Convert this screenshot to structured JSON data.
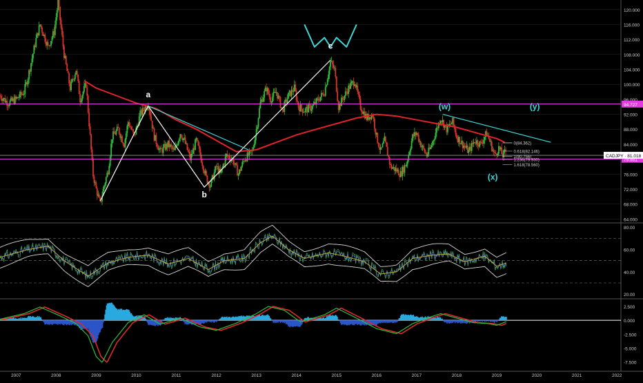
{
  "chart_data": {
    "type": "line",
    "symbol": "CADJPY",
    "colors": {
      "background": "#000000",
      "up": "#2fbf3a",
      "down": "#d9342b",
      "ma": "#e0242a",
      "wave": "#ffffff",
      "trendline": "#3fd8d8",
      "level": "#e23ce0",
      "grid": "#2a2a2a",
      "axis_text": "#cfcfcf"
    },
    "x_axis": {
      "labels": [
        "2007",
        "2008",
        "2009",
        "2010",
        "2011",
        "2012",
        "2013",
        "2014",
        "2015",
        "2016",
        "2017",
        "2018",
        "2019",
        "2020",
        "2021",
        "2022"
      ],
      "range": [
        2006.6,
        2022.1
      ]
    },
    "price_panel": {
      "ylim": [
        63.5,
        122
      ],
      "ticks": [
        "120.000",
        "116.000",
        "112.000",
        "108.000",
        "104.000",
        "100.000",
        "96.000",
        "92.000",
        "88.000",
        "84.000",
        "80.000",
        "76.000",
        "72.000",
        "68.000",
        "64.000"
      ],
      "tick_values": [
        120,
        116,
        112,
        108,
        104,
        100,
        96,
        92,
        88,
        84,
        80,
        76,
        72,
        68,
        64
      ],
      "price_series": [
        [
          2006.6,
          97
        ],
        [
          2006.8,
          95
        ],
        [
          2007.0,
          96
        ],
        [
          2007.2,
          98
        ],
        [
          2007.3,
          102
        ],
        [
          2007.5,
          112
        ],
        [
          2007.6,
          116
        ],
        [
          2007.8,
          110
        ],
        [
          2007.95,
          114
        ],
        [
          2008.05,
          122
        ],
        [
          2008.2,
          108
        ],
        [
          2008.35,
          99
        ],
        [
          2008.5,
          104
        ],
        [
          2008.6,
          96
        ],
        [
          2008.75,
          100
        ],
        [
          2008.85,
          86
        ],
        [
          2008.92,
          76
        ],
        [
          2009.0,
          72
        ],
        [
          2009.1,
          68
        ],
        [
          2009.2,
          73
        ],
        [
          2009.3,
          77
        ],
        [
          2009.4,
          86
        ],
        [
          2009.55,
          88
        ],
        [
          2009.7,
          84
        ],
        [
          2009.8,
          90
        ],
        [
          2009.95,
          86
        ],
        [
          2010.1,
          92
        ],
        [
          2010.3,
          95
        ],
        [
          2010.45,
          86
        ],
        [
          2010.6,
          82
        ],
        [
          2010.8,
          84
        ],
        [
          2010.95,
          82
        ],
        [
          2011.1,
          87
        ],
        [
          2011.2,
          85
        ],
        [
          2011.35,
          80
        ],
        [
          2011.5,
          85
        ],
        [
          2011.6,
          81
        ],
        [
          2011.75,
          75
        ],
        [
          2011.85,
          73
        ],
        [
          2012.0,
          78
        ],
        [
          2012.1,
          76
        ],
        [
          2012.25,
          81
        ],
        [
          2012.4,
          80
        ],
        [
          2012.55,
          76
        ],
        [
          2012.7,
          80
        ],
        [
          2012.9,
          82
        ],
        [
          2013.0,
          88
        ],
        [
          2013.1,
          95
        ],
        [
          2013.25,
          99
        ],
        [
          2013.35,
          96
        ],
        [
          2013.5,
          98
        ],
        [
          2013.65,
          93
        ],
        [
          2013.8,
          97
        ],
        [
          2013.95,
          99
        ],
        [
          2014.05,
          94
        ],
        [
          2014.2,
          93
        ],
        [
          2014.4,
          94
        ],
        [
          2014.55,
          96
        ],
        [
          2014.7,
          98
        ],
        [
          2014.85,
          106
        ],
        [
          2014.95,
          104
        ],
        [
          2015.05,
          94
        ],
        [
          2015.15,
          96
        ],
        [
          2015.3,
          99
        ],
        [
          2015.45,
          101
        ],
        [
          2015.6,
          94
        ],
        [
          2015.75,
          91
        ],
        [
          2015.9,
          92
        ],
        [
          2016.0,
          86
        ],
        [
          2016.1,
          82
        ],
        [
          2016.2,
          85
        ],
        [
          2016.35,
          78
        ],
        [
          2016.5,
          77
        ],
        [
          2016.6,
          76
        ],
        [
          2016.75,
          79
        ],
        [
          2016.9,
          86
        ],
        [
          2017.0,
          87
        ],
        [
          2017.1,
          84
        ],
        [
          2017.25,
          81
        ],
        [
          2017.35,
          83
        ],
        [
          2017.5,
          88
        ],
        [
          2017.6,
          91
        ],
        [
          2017.75,
          88
        ],
        [
          2017.9,
          90
        ],
        [
          2018.0,
          86
        ],
        [
          2018.15,
          84
        ],
        [
          2018.3,
          82
        ],
        [
          2018.45,
          85
        ],
        [
          2018.6,
          84
        ],
        [
          2018.75,
          87
        ],
        [
          2018.85,
          84
        ],
        [
          2018.95,
          81
        ],
        [
          2019.05,
          83
        ],
        [
          2019.15,
          81
        ],
        [
          2019.25,
          82.5
        ]
      ],
      "ma_series": [
        [
          2008.7,
          101
        ],
        [
          2009.0,
          99
        ],
        [
          2009.5,
          97
        ],
        [
          2010.0,
          95
        ],
        [
          2010.5,
          93.5
        ],
        [
          2011.0,
          90.5
        ],
        [
          2011.5,
          88
        ],
        [
          2012.0,
          85
        ],
        [
          2012.5,
          82
        ],
        [
          2013.0,
          82.5
        ],
        [
          2013.5,
          84.5
        ],
        [
          2014.0,
          86.5
        ],
        [
          2014.5,
          88
        ],
        [
          2015.0,
          89.5
        ],
        [
          2015.5,
          91
        ],
        [
          2016.0,
          92
        ],
        [
          2016.5,
          91.5
        ],
        [
          2017.0,
          90.5
        ],
        [
          2017.5,
          89.5
        ],
        [
          2018.0,
          88.5
        ],
        [
          2018.5,
          87
        ],
        [
          2019.0,
          85.5
        ],
        [
          2019.2,
          84.5
        ]
      ],
      "wave_lines": [
        [
          [
            2009.1,
            68.8
          ],
          [
            2010.3,
            94.2
          ],
          [
            2011.7,
            72.5
          ],
          [
            2014.85,
            106.5
          ]
        ]
      ],
      "trendlines": [
        [
          [
            2010.3,
            94.2
          ],
          [
            2012.8,
            82.5
          ]
        ],
        [
          [
            2017.65,
            92
          ],
          [
            2020.35,
            84.5
          ]
        ]
      ],
      "levels": [
        {
          "value": 94.727,
          "label": "94.727"
        },
        {
          "value": 79.981,
          "label": "79.981"
        }
      ],
      "current": {
        "value": 81.018,
        "label": "CADJPY · 81.018"
      },
      "wave_labels": [
        {
          "text": "a",
          "x": 2010.3,
          "y": 96.5,
          "color": "#ffffff"
        },
        {
          "text": "b",
          "x": 2011.7,
          "y": 69.8,
          "color": "#ffffff"
        },
        {
          "text": "c",
          "x": 2014.85,
          "y": 109.5,
          "color": "#ffffff"
        },
        {
          "text": "(w)",
          "x": 2017.7,
          "y": 93.3,
          "color": "#3fd8d8"
        },
        {
          "text": "(x)",
          "x": 2018.9,
          "y": 74.5,
          "color": "#3fd8d8"
        },
        {
          "text": "(y)",
          "x": 2019.95,
          "y": 93.3,
          "color": "#3fd8d8"
        }
      ],
      "fib_labels": [
        {
          "text": "0(84.362)",
          "y": 84.362
        },
        {
          "text": "0.618(82.146)",
          "y": 82.146
        },
        {
          "text": "1(80.756)",
          "y": 80.756
        },
        {
          "text": "1.236(79.930)",
          "y": 79.93
        },
        {
          "text": "1.618(78.560)",
          "y": 78.56
        }
      ],
      "wave_sketch": [
        [
          2014.2,
          116
        ],
        [
          2014.45,
          110
        ],
        [
          2014.7,
          112.5
        ],
        [
          2014.85,
          110
        ],
        [
          2015.0,
          112.5
        ],
        [
          2015.25,
          110
        ],
        [
          2015.5,
          116
        ]
      ]
    },
    "rsi_panel": {
      "ylim": [
        17,
        82
      ],
      "ticks": [
        "80.00",
        "60.00",
        "40.00",
        "20.00"
      ],
      "tick_values": [
        80,
        60,
        40,
        20
      ],
      "guides": [
        70,
        50,
        30
      ],
      "rsi_series": [
        [
          2006.6,
          53
        ],
        [
          2007.3,
          60
        ],
        [
          2007.8,
          63
        ],
        [
          2008.2,
          50
        ],
        [
          2008.8,
          36
        ],
        [
          2009.3,
          48
        ],
        [
          2009.8,
          53
        ],
        [
          2010.3,
          55
        ],
        [
          2010.8,
          47
        ],
        [
          2011.3,
          52
        ],
        [
          2011.8,
          42
        ],
        [
          2012.2,
          50
        ],
        [
          2012.7,
          52
        ],
        [
          2013.1,
          66
        ],
        [
          2013.4,
          72
        ],
        [
          2013.8,
          60
        ],
        [
          2014.2,
          52
        ],
        [
          2014.8,
          57
        ],
        [
          2015.2,
          54
        ],
        [
          2015.7,
          49
        ],
        [
          2016.1,
          38
        ],
        [
          2016.5,
          40
        ],
        [
          2016.9,
          52
        ],
        [
          2017.4,
          55
        ],
        [
          2017.8,
          56
        ],
        [
          2018.2,
          49
        ],
        [
          2018.7,
          54
        ],
        [
          2019.0,
          45
        ],
        [
          2019.25,
          48
        ]
      ]
    },
    "macd_panel": {
      "ylim": [
        -8.8,
        3.5
      ],
      "ticks": [
        "2.500",
        "0.000",
        "-2.500",
        "-5.000",
        "-7.500"
      ],
      "tick_values": [
        2.5,
        0,
        -2.5,
        -5,
        -7.5
      ],
      "macd_series": [
        [
          2006.6,
          0.2
        ],
        [
          2007.2,
          1.2
        ],
        [
          2007.6,
          2.4
        ],
        [
          2008.1,
          0.8
        ],
        [
          2008.5,
          -0.6
        ],
        [
          2008.8,
          -2.8
        ],
        [
          2009.0,
          -6.5
        ],
        [
          2009.15,
          -7.6
        ],
        [
          2009.4,
          -4.0
        ],
        [
          2009.8,
          -0.4
        ],
        [
          2010.2,
          1.0
        ],
        [
          2010.6,
          -0.7
        ],
        [
          2011.1,
          0.4
        ],
        [
          2011.6,
          -1.2
        ],
        [
          2012.0,
          -1.8
        ],
        [
          2012.5,
          -0.5
        ],
        [
          2013.0,
          1.2
        ],
        [
          2013.3,
          2.5
        ],
        [
          2013.7,
          1.8
        ],
        [
          2014.1,
          -0.3
        ],
        [
          2014.7,
          1.0
        ],
        [
          2015.0,
          2.2
        ],
        [
          2015.5,
          0.4
        ],
        [
          2016.0,
          -1.5
        ],
        [
          2016.5,
          -2.4
        ],
        [
          2016.9,
          -0.6
        ],
        [
          2017.3,
          0.5
        ],
        [
          2017.6,
          1.2
        ],
        [
          2018.0,
          0.4
        ],
        [
          2018.4,
          -0.4
        ],
        [
          2018.8,
          -0.6
        ],
        [
          2019.0,
          -0.9
        ],
        [
          2019.25,
          -0.2
        ]
      ]
    }
  }
}
